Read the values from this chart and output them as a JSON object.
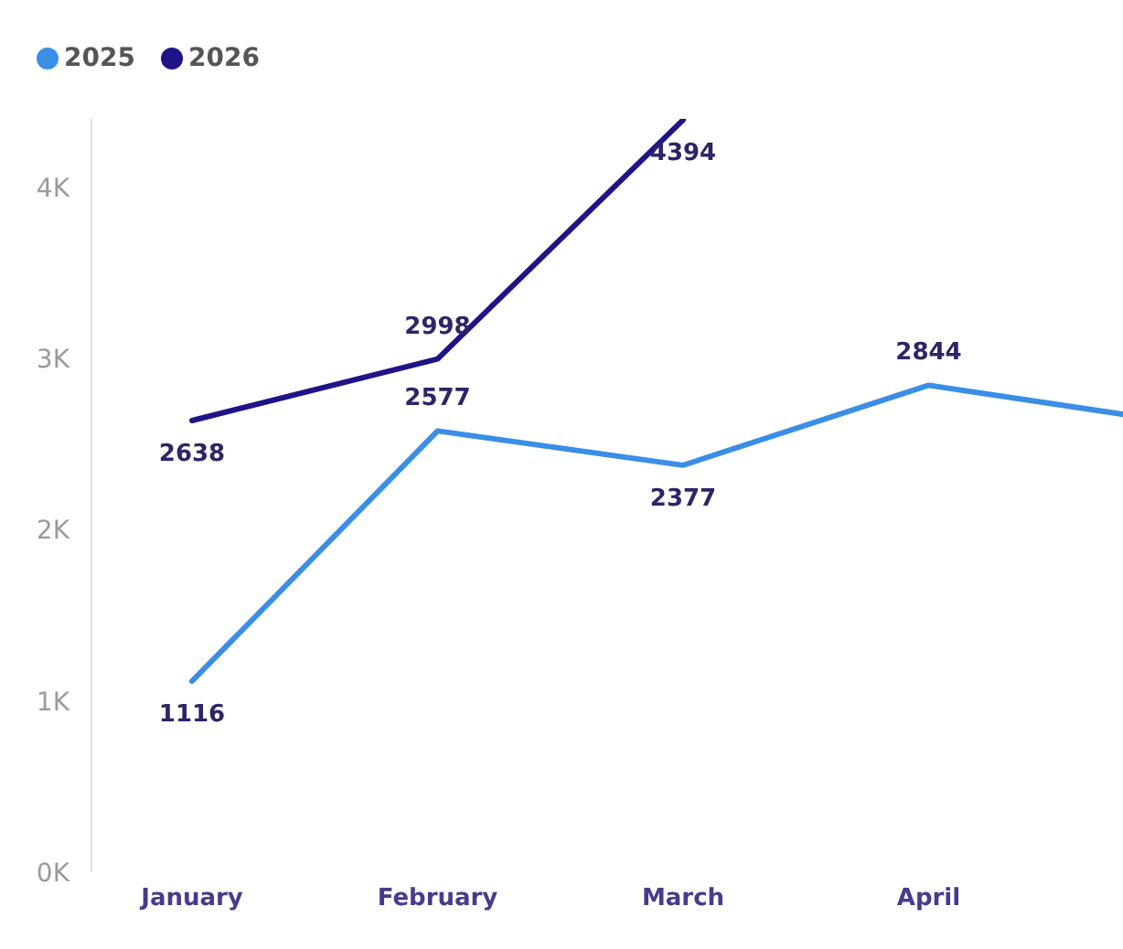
{
  "chart_data": {
    "type": "line",
    "categories": [
      "January",
      "February",
      "March",
      "April",
      null
    ],
    "series": [
      {
        "name": "2025",
        "color": "#3a8ee6",
        "values": [
          1116,
          2577,
          2377,
          2844,
          2630
        ],
        "value_labels": [
          "1116",
          "2577",
          "2377",
          "2844",
          null
        ]
      },
      {
        "name": "2026",
        "color": "#1f1487",
        "values": [
          2638,
          2998,
          4394,
          null,
          null
        ],
        "value_labels": [
          "2638",
          "2998",
          "4394",
          null,
          null
        ]
      }
    ],
    "ylim": [
      0,
      4400
    ],
    "yticks": [
      {
        "value": 0,
        "label": "0K"
      },
      {
        "value": 1000,
        "label": "1K"
      },
      {
        "value": 2000,
        "label": "2K"
      },
      {
        "value": 3000,
        "label": "3K"
      },
      {
        "value": 4000,
        "label": "4K"
      }
    ],
    "legend": "top left"
  }
}
